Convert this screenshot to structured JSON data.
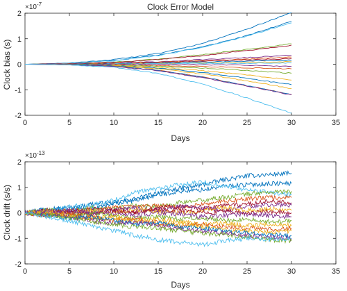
{
  "chart_data": [
    {
      "type": "line",
      "title": "Clock Error Model",
      "xlabel": "Days",
      "ylabel": "Clock bias (s)",
      "multiplier": "×10",
      "exponent": "-7",
      "xlim": [
        0,
        35
      ],
      "ylim": [
        -2,
        2
      ],
      "xticks": [
        "0",
        "5",
        "10",
        "15",
        "20",
        "25",
        "30",
        "35"
      ],
      "yticks": [
        "-2",
        "-1",
        "0",
        "1",
        "2"
      ],
      "grid": false,
      "x": [
        0,
        5,
        10,
        15,
        20,
        25,
        30
      ],
      "series": [
        {
          "color": "#0072BD",
          "values": [
            0,
            0.05,
            0.18,
            0.42,
            0.82,
            1.38,
            2.02
          ]
        },
        {
          "color": "#0072BD",
          "values": [
            0,
            0.04,
            0.15,
            0.36,
            0.68,
            1.12,
            1.68
          ]
        },
        {
          "color": "#4DBEEE",
          "values": [
            0,
            0.04,
            0.14,
            0.34,
            0.66,
            1.1,
            1.62
          ]
        },
        {
          "color": "#77AC30",
          "values": [
            0,
            0.02,
            0.08,
            0.2,
            0.38,
            0.58,
            0.8
          ]
        },
        {
          "color": "#A2142F",
          "values": [
            0,
            0.02,
            0.07,
            0.18,
            0.34,
            0.54,
            0.75
          ]
        },
        {
          "color": "#7E2F8E",
          "values": [
            0,
            0.01,
            0.04,
            0.1,
            0.18,
            0.26,
            0.35
          ]
        },
        {
          "color": "#D95319",
          "values": [
            0,
            0.01,
            0.03,
            0.08,
            0.14,
            0.2,
            0.28
          ]
        },
        {
          "color": "#A2142F",
          "values": [
            0,
            0.01,
            0.03,
            0.07,
            0.12,
            0.17,
            0.22
          ]
        },
        {
          "color": "#0072BD",
          "values": [
            0,
            0.0,
            0.02,
            0.05,
            0.09,
            0.12,
            0.15
          ]
        },
        {
          "color": "#EDB120",
          "values": [
            0,
            0.0,
            0.01,
            0.03,
            0.05,
            0.07,
            0.1
          ]
        },
        {
          "color": "#4DBEEE",
          "values": [
            0,
            0.0,
            0.01,
            0.02,
            0.03,
            0.04,
            0.05
          ]
        },
        {
          "color": "#7E2F8E",
          "values": [
            0,
            0.0,
            0.0,
            0.0,
            -0.02,
            -0.04,
            -0.08
          ]
        },
        {
          "color": "#D95319",
          "values": [
            0,
            -0.01,
            -0.02,
            -0.05,
            -0.09,
            -0.14,
            -0.18
          ]
        },
        {
          "color": "#77AC30",
          "values": [
            0,
            -0.01,
            -0.03,
            -0.08,
            -0.15,
            -0.24,
            -0.35
          ]
        },
        {
          "color": "#EDB120",
          "values": [
            0,
            -0.01,
            -0.04,
            -0.12,
            -0.25,
            -0.42,
            -0.62
          ]
        },
        {
          "color": "#0072BD",
          "values": [
            0,
            -0.01,
            -0.05,
            -0.15,
            -0.32,
            -0.55,
            -0.8
          ]
        },
        {
          "color": "#EDB120",
          "values": [
            0,
            -0.02,
            -0.06,
            -0.18,
            -0.38,
            -0.65,
            -0.95
          ]
        },
        {
          "color": "#D95319",
          "values": [
            0,
            -0.02,
            -0.08,
            -0.24,
            -0.5,
            -0.84,
            -1.18
          ]
        },
        {
          "color": "#0072BD",
          "values": [
            0,
            -0.02,
            -0.08,
            -0.24,
            -0.5,
            -0.84,
            -1.2
          ]
        },
        {
          "color": "#7E2F8E",
          "values": [
            0,
            -0.02,
            -0.09,
            -0.26,
            -0.52,
            -0.85,
            -1.2
          ]
        },
        {
          "color": "#4DBEEE",
          "values": [
            0,
            -0.03,
            -0.12,
            -0.36,
            -0.78,
            -1.32,
            -1.92
          ]
        }
      ]
    },
    {
      "type": "line",
      "title": "",
      "xlabel": "Days",
      "ylabel": "Clock drift (s/s)",
      "multiplier": "×10",
      "exponent": "-13",
      "xlim": [
        0,
        35
      ],
      "ylim": [
        -2,
        2
      ],
      "xticks": [
        "0",
        "5",
        "10",
        "15",
        "20",
        "25",
        "30",
        "35"
      ],
      "yticks": [
        "-2",
        "-1",
        "0",
        "1",
        "2"
      ],
      "grid": false,
      "x": [
        0,
        2.5,
        5,
        7.5,
        10,
        12.5,
        15,
        17.5,
        20,
        22.5,
        25,
        27.5,
        30
      ],
      "series": [
        {
          "color": "#0072BD",
          "values": [
            0,
            0.2,
            0.15,
            0.35,
            0.4,
            0.55,
            0.8,
            0.95,
            1.1,
            1.3,
            1.45,
            1.5,
            1.55
          ]
        },
        {
          "color": "#0072BD",
          "values": [
            0,
            0.1,
            0.2,
            0.15,
            0.35,
            0.5,
            0.7,
            0.85,
            0.9,
            1.05,
            1.1,
            1.15,
            1.15
          ]
        },
        {
          "color": "#4DBEEE",
          "values": [
            0,
            0.05,
            0.25,
            0.3,
            0.5,
            0.8,
            0.95,
            1.1,
            1.2,
            1.05,
            0.9,
            0.8,
            0.7
          ]
        },
        {
          "color": "#77AC30",
          "values": [
            0,
            0.1,
            0.05,
            0.2,
            0.15,
            0.3,
            0.25,
            0.4,
            0.5,
            0.6,
            0.75,
            0.8,
            0.85
          ]
        },
        {
          "color": "#D95319",
          "values": [
            0,
            -0.05,
            0.1,
            0.05,
            0.2,
            0.25,
            0.3,
            0.2,
            0.35,
            0.45,
            0.55,
            0.6,
            0.6
          ]
        },
        {
          "color": "#A2142F",
          "values": [
            0,
            0.1,
            0.0,
            0.15,
            0.1,
            0.05,
            0.2,
            0.25,
            0.15,
            0.3,
            0.35,
            0.45,
            0.4
          ]
        },
        {
          "color": "#7E2F8E",
          "values": [
            0,
            -0.05,
            0.05,
            0.0,
            0.1,
            0.2,
            0.1,
            0.25,
            0.2,
            0.1,
            0.25,
            0.3,
            0.3
          ]
        },
        {
          "color": "#EDB120",
          "values": [
            0,
            0.05,
            -0.05,
            0.1,
            0.0,
            0.15,
            0.05,
            0.0,
            0.1,
            0.2,
            0.1,
            0.15,
            0.1
          ]
        },
        {
          "color": "#A2142F",
          "values": [
            0,
            -0.1,
            0.0,
            -0.05,
            0.1,
            0.0,
            0.15,
            0.1,
            0.0,
            0.05,
            0.0,
            0.05,
            0.0
          ]
        },
        {
          "color": "#7E2F8E",
          "values": [
            0,
            0.05,
            0.1,
            0.0,
            -0.05,
            -0.1,
            0.0,
            -0.05,
            -0.15,
            -0.1,
            -0.05,
            -0.1,
            -0.15
          ]
        },
        {
          "color": "#77AC30",
          "values": [
            0,
            -0.05,
            -0.1,
            0.0,
            -0.1,
            -0.2,
            -0.15,
            -0.25,
            -0.2,
            -0.3,
            -0.25,
            -0.35,
            -0.3
          ]
        },
        {
          "color": "#EDB120",
          "values": [
            0,
            0.0,
            -0.1,
            -0.2,
            -0.15,
            -0.3,
            -0.25,
            -0.35,
            -0.45,
            -0.4,
            -0.5,
            -0.45,
            -0.5
          ]
        },
        {
          "color": "#D95319",
          "values": [
            0,
            -0.1,
            -0.05,
            -0.15,
            -0.3,
            -0.25,
            -0.4,
            -0.5,
            -0.45,
            -0.55,
            -0.6,
            -0.65,
            -0.6
          ]
        },
        {
          "color": "#EDB120",
          "values": [
            0,
            -0.05,
            -0.15,
            -0.25,
            -0.2,
            -0.35,
            -0.45,
            -0.4,
            -0.55,
            -0.65,
            -0.7,
            -0.75,
            -0.7
          ]
        },
        {
          "color": "#0072BD",
          "values": [
            0,
            -0.1,
            -0.2,
            -0.15,
            -0.3,
            -0.45,
            -0.4,
            -0.55,
            -0.6,
            -0.7,
            -0.8,
            -0.85,
            -0.9
          ]
        },
        {
          "color": "#7E2F8E",
          "values": [
            0,
            -0.05,
            -0.15,
            -0.3,
            -0.4,
            -0.35,
            -0.5,
            -0.65,
            -0.7,
            -0.8,
            -0.9,
            -0.95,
            -1.0
          ]
        },
        {
          "color": "#77AC30",
          "values": [
            0,
            -0.1,
            -0.2,
            -0.35,
            -0.45,
            -0.55,
            -0.6,
            -0.7,
            -0.8,
            -0.85,
            -0.95,
            -1.05,
            -1.1
          ]
        },
        {
          "color": "#4DBEEE",
          "values": [
            0,
            -0.15,
            -0.3,
            -0.5,
            -0.7,
            -0.9,
            -1.05,
            -1.15,
            -1.25,
            -1.1,
            -1.0,
            -1.05,
            -1.0
          ]
        }
      ]
    }
  ]
}
